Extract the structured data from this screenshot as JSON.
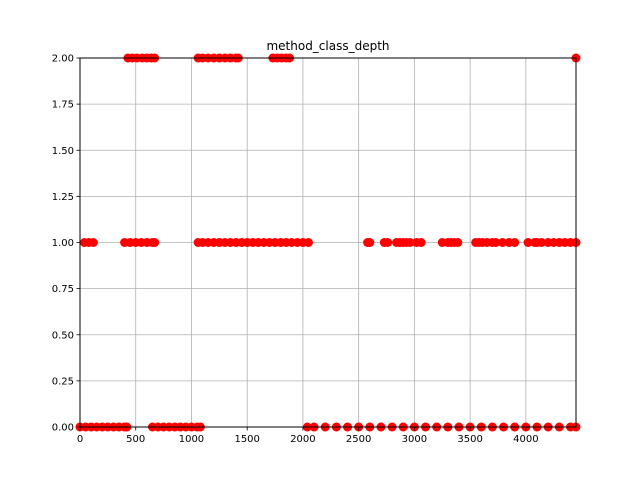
{
  "chart_data": {
    "type": "scatter",
    "title": "method_class_depth",
    "xlabel": "",
    "ylabel": "",
    "xlim": [
      0,
      4450
    ],
    "ylim": [
      0,
      2
    ],
    "grid": true,
    "marker_color": "#ff0000",
    "x_ticks": [
      0,
      500,
      1000,
      1500,
      2000,
      2500,
      3000,
      3500,
      4000
    ],
    "x_tick_labels": [
      "0",
      "500",
      "1000",
      "1500",
      "2000",
      "2500",
      "3000",
      "3500",
      "4000"
    ],
    "y_ticks": [
      0,
      0.25,
      0.5,
      0.75,
      1.0,
      1.25,
      1.5,
      1.75,
      2.0
    ],
    "y_tick_labels": [
      "0.00",
      "0.25",
      "0.50",
      "0.75",
      "1.00",
      "1.25",
      "1.50",
      "1.75",
      "2.00"
    ],
    "points": [
      {
        "x": 0,
        "y": 0
      },
      {
        "x": 50,
        "y": 0
      },
      {
        "x": 100,
        "y": 0
      },
      {
        "x": 150,
        "y": 0
      },
      {
        "x": 200,
        "y": 0
      },
      {
        "x": 250,
        "y": 0
      },
      {
        "x": 300,
        "y": 0
      },
      {
        "x": 350,
        "y": 0
      },
      {
        "x": 400,
        "y": 0
      },
      {
        "x": 420,
        "y": 0
      },
      {
        "x": 650,
        "y": 0
      },
      {
        "x": 700,
        "y": 0
      },
      {
        "x": 750,
        "y": 0
      },
      {
        "x": 800,
        "y": 0
      },
      {
        "x": 850,
        "y": 0
      },
      {
        "x": 900,
        "y": 0
      },
      {
        "x": 950,
        "y": 0
      },
      {
        "x": 1000,
        "y": 0
      },
      {
        "x": 1050,
        "y": 0
      },
      {
        "x": 1080,
        "y": 0
      },
      {
        "x": 2040,
        "y": 0
      },
      {
        "x": 2100,
        "y": 0
      },
      {
        "x": 2200,
        "y": 0
      },
      {
        "x": 2300,
        "y": 0
      },
      {
        "x": 2400,
        "y": 0
      },
      {
        "x": 2500,
        "y": 0
      },
      {
        "x": 2600,
        "y": 0
      },
      {
        "x": 2700,
        "y": 0
      },
      {
        "x": 2800,
        "y": 0
      },
      {
        "x": 2900,
        "y": 0
      },
      {
        "x": 3000,
        "y": 0
      },
      {
        "x": 3100,
        "y": 0
      },
      {
        "x": 3200,
        "y": 0
      },
      {
        "x": 3300,
        "y": 0
      },
      {
        "x": 3400,
        "y": 0
      },
      {
        "x": 3500,
        "y": 0
      },
      {
        "x": 3600,
        "y": 0
      },
      {
        "x": 3700,
        "y": 0
      },
      {
        "x": 3800,
        "y": 0
      },
      {
        "x": 3900,
        "y": 0
      },
      {
        "x": 4000,
        "y": 0
      },
      {
        "x": 4100,
        "y": 0
      },
      {
        "x": 4200,
        "y": 0
      },
      {
        "x": 4300,
        "y": 0
      },
      {
        "x": 4400,
        "y": 0
      },
      {
        "x": 4450,
        "y": 0
      },
      {
        "x": 40,
        "y": 1
      },
      {
        "x": 80,
        "y": 1
      },
      {
        "x": 120,
        "y": 1
      },
      {
        "x": 400,
        "y": 1
      },
      {
        "x": 450,
        "y": 1
      },
      {
        "x": 500,
        "y": 1
      },
      {
        "x": 550,
        "y": 1
      },
      {
        "x": 600,
        "y": 1
      },
      {
        "x": 650,
        "y": 1
      },
      {
        "x": 670,
        "y": 1
      },
      {
        "x": 1060,
        "y": 1
      },
      {
        "x": 1100,
        "y": 1
      },
      {
        "x": 1150,
        "y": 1
      },
      {
        "x": 1200,
        "y": 1
      },
      {
        "x": 1250,
        "y": 1
      },
      {
        "x": 1300,
        "y": 1
      },
      {
        "x": 1350,
        "y": 1
      },
      {
        "x": 1400,
        "y": 1
      },
      {
        "x": 1450,
        "y": 1
      },
      {
        "x": 1500,
        "y": 1
      },
      {
        "x": 1550,
        "y": 1
      },
      {
        "x": 1600,
        "y": 1
      },
      {
        "x": 1650,
        "y": 1
      },
      {
        "x": 1700,
        "y": 1
      },
      {
        "x": 1750,
        "y": 1
      },
      {
        "x": 1800,
        "y": 1
      },
      {
        "x": 1850,
        "y": 1
      },
      {
        "x": 1900,
        "y": 1
      },
      {
        "x": 1950,
        "y": 1
      },
      {
        "x": 2000,
        "y": 1
      },
      {
        "x": 2050,
        "y": 1
      },
      {
        "x": 2580,
        "y": 1
      },
      {
        "x": 2600,
        "y": 1
      },
      {
        "x": 2730,
        "y": 1
      },
      {
        "x": 2760,
        "y": 1
      },
      {
        "x": 2840,
        "y": 1
      },
      {
        "x": 2870,
        "y": 1
      },
      {
        "x": 2900,
        "y": 1
      },
      {
        "x": 2930,
        "y": 1
      },
      {
        "x": 2960,
        "y": 1
      },
      {
        "x": 3020,
        "y": 1
      },
      {
        "x": 3060,
        "y": 1
      },
      {
        "x": 3250,
        "y": 1
      },
      {
        "x": 3300,
        "y": 1
      },
      {
        "x": 3330,
        "y": 1
      },
      {
        "x": 3360,
        "y": 1
      },
      {
        "x": 3390,
        "y": 1
      },
      {
        "x": 3550,
        "y": 1
      },
      {
        "x": 3580,
        "y": 1
      },
      {
        "x": 3610,
        "y": 1
      },
      {
        "x": 3650,
        "y": 1
      },
      {
        "x": 3700,
        "y": 1
      },
      {
        "x": 3730,
        "y": 1
      },
      {
        "x": 3790,
        "y": 1
      },
      {
        "x": 3850,
        "y": 1
      },
      {
        "x": 3900,
        "y": 1
      },
      {
        "x": 4020,
        "y": 1
      },
      {
        "x": 4080,
        "y": 1
      },
      {
        "x": 4100,
        "y": 1
      },
      {
        "x": 4140,
        "y": 1
      },
      {
        "x": 4200,
        "y": 1
      },
      {
        "x": 4250,
        "y": 1
      },
      {
        "x": 4300,
        "y": 1
      },
      {
        "x": 4350,
        "y": 1
      },
      {
        "x": 4400,
        "y": 1
      },
      {
        "x": 4450,
        "y": 1
      },
      {
        "x": 430,
        "y": 2
      },
      {
        "x": 470,
        "y": 2
      },
      {
        "x": 510,
        "y": 2
      },
      {
        "x": 560,
        "y": 2
      },
      {
        "x": 600,
        "y": 2
      },
      {
        "x": 640,
        "y": 2
      },
      {
        "x": 670,
        "y": 2
      },
      {
        "x": 1060,
        "y": 2
      },
      {
        "x": 1100,
        "y": 2
      },
      {
        "x": 1150,
        "y": 2
      },
      {
        "x": 1200,
        "y": 2
      },
      {
        "x": 1250,
        "y": 2
      },
      {
        "x": 1300,
        "y": 2
      },
      {
        "x": 1350,
        "y": 2
      },
      {
        "x": 1400,
        "y": 2
      },
      {
        "x": 1420,
        "y": 2
      },
      {
        "x": 1730,
        "y": 2
      },
      {
        "x": 1770,
        "y": 2
      },
      {
        "x": 1810,
        "y": 2
      },
      {
        "x": 1850,
        "y": 2
      },
      {
        "x": 1880,
        "y": 2
      },
      {
        "x": 4450,
        "y": 2
      }
    ]
  }
}
